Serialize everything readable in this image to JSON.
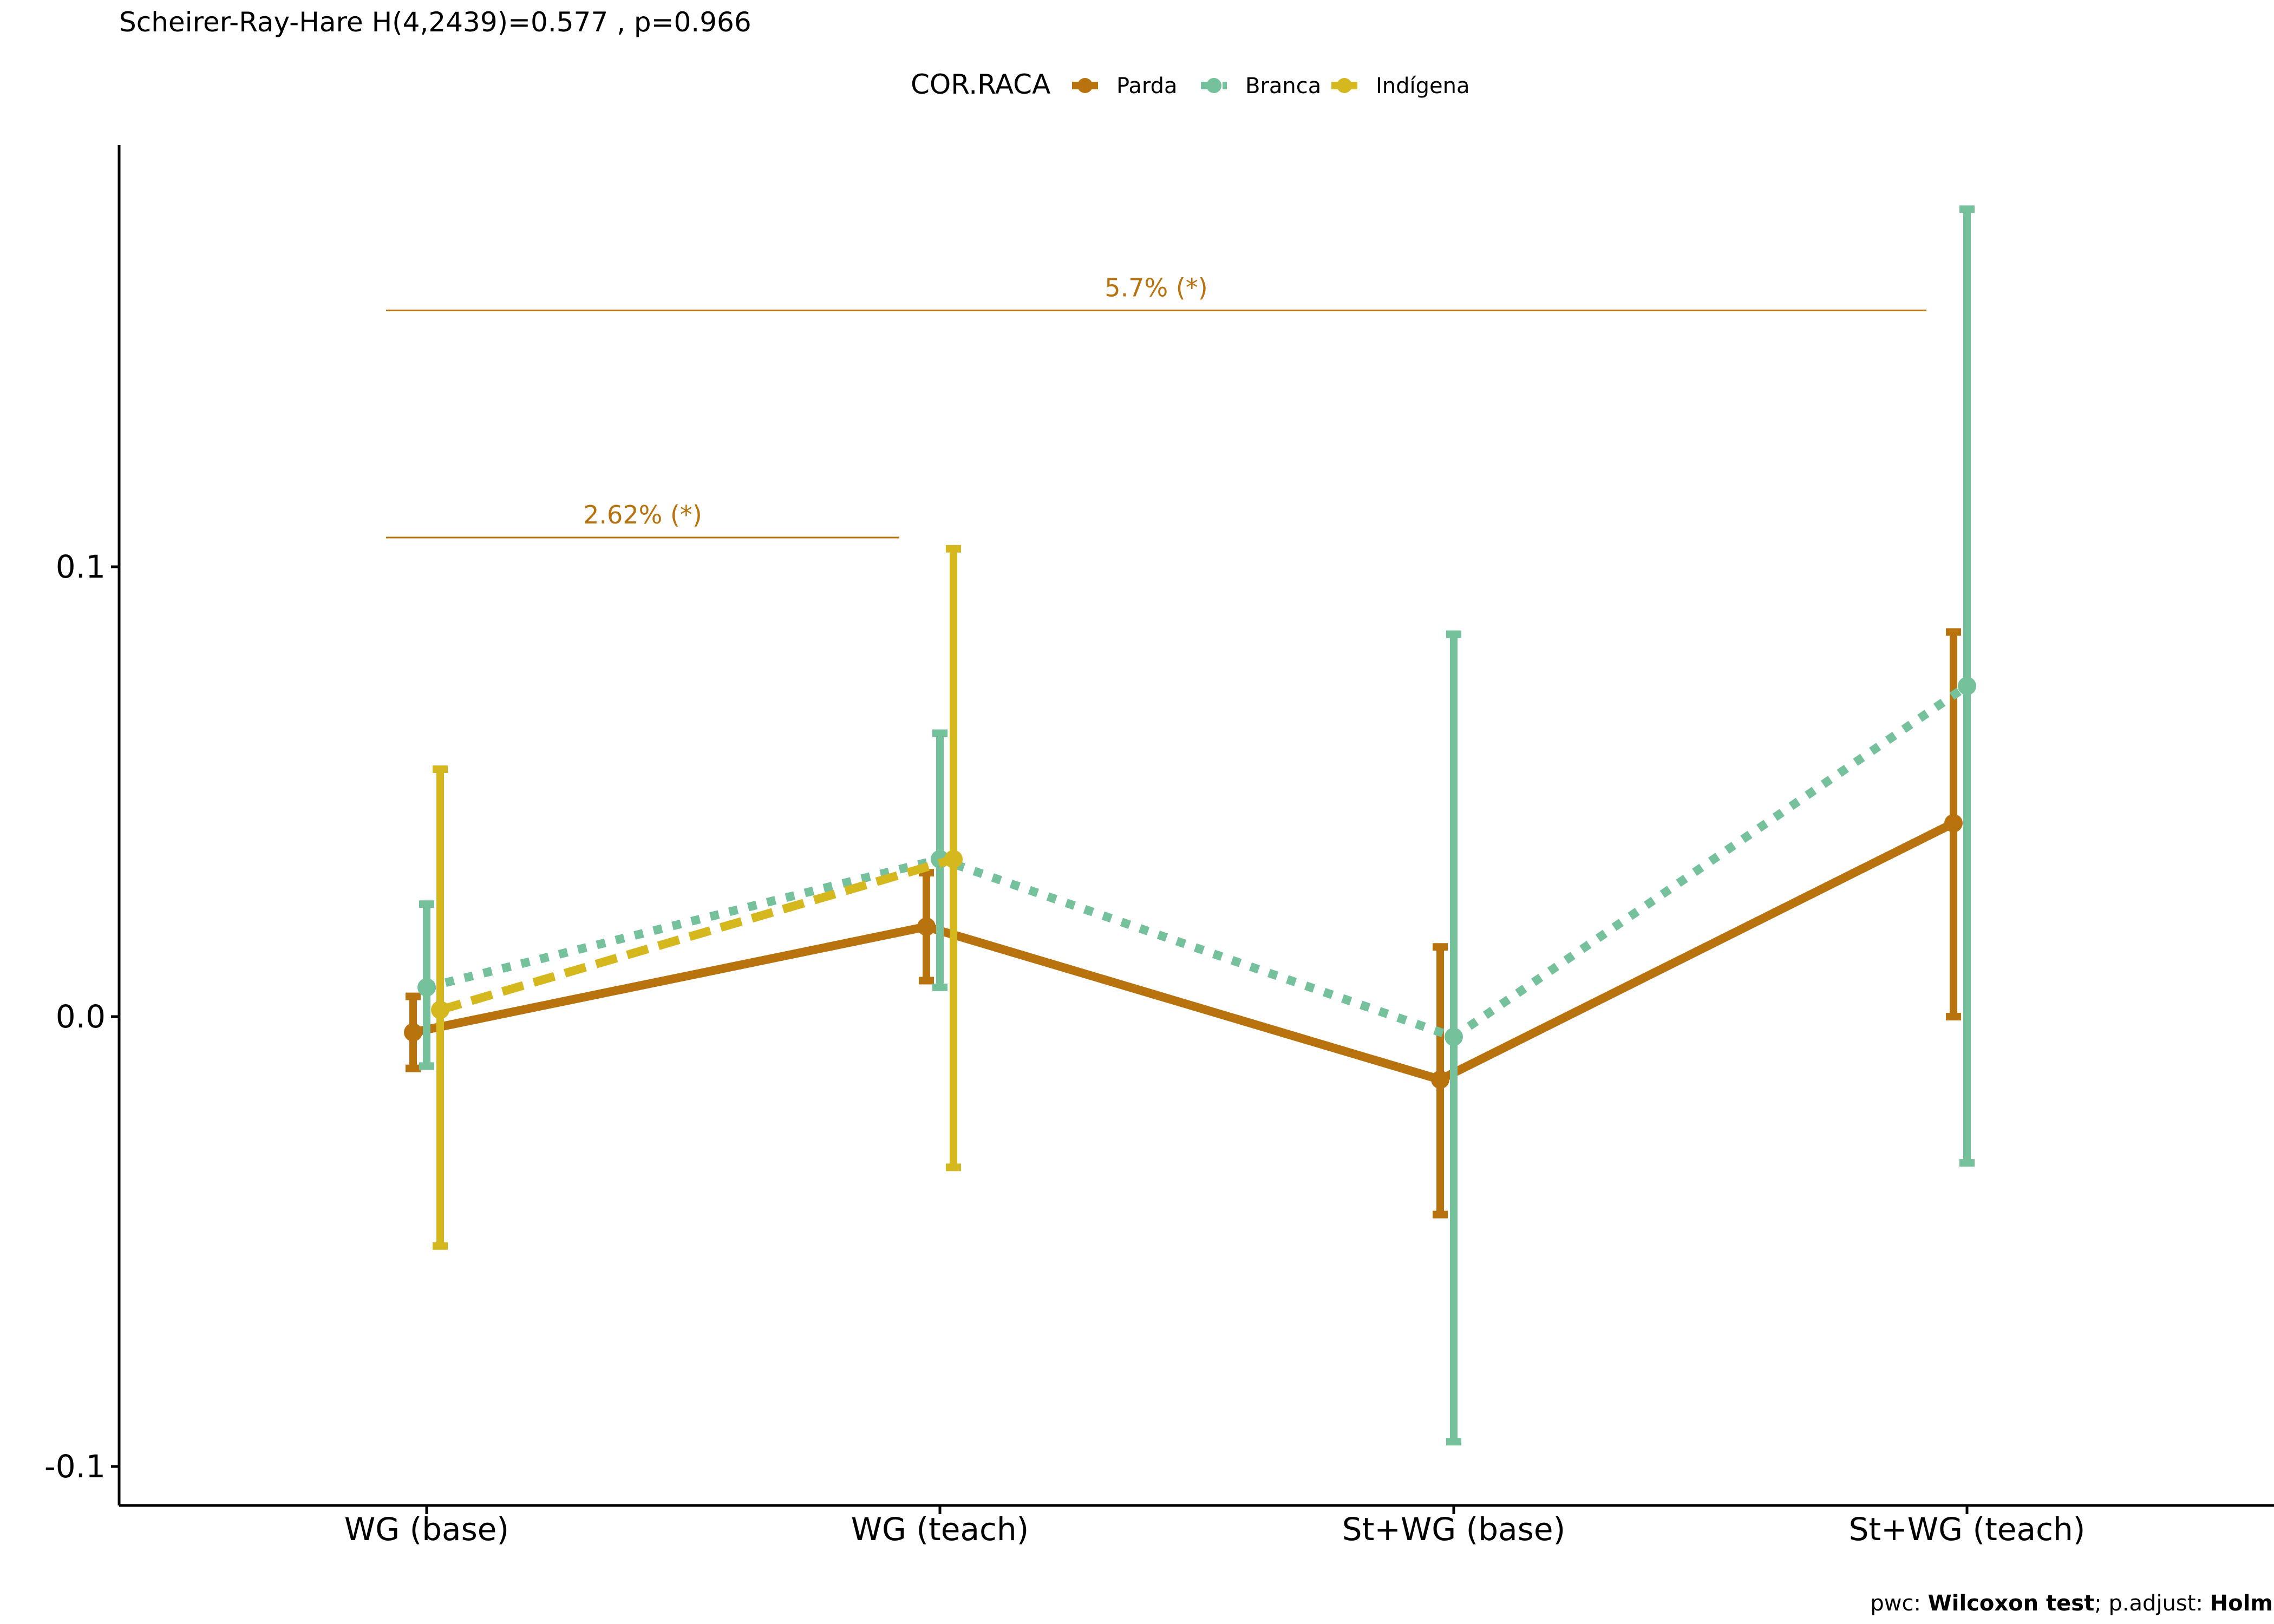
{
  "chart_data": {
    "type": "line",
    "subtitle": "Scheirer-Ray-Hare H(4,2439)=0.577 , p=0.966",
    "legend": {
      "title": "COR.RACA",
      "position": "top"
    },
    "categories": [
      "WG (base)",
      "WG (teach)",
      "St+WG (base)",
      "St+WG (teach)"
    ],
    "y_ticks": [
      {
        "value": 0.1,
        "label": "0.1"
      },
      {
        "value": 0.0,
        "label": "0.0"
      },
      {
        "value": -0.1,
        "label": "-0.1"
      }
    ],
    "ylim": [
      -0.108,
      0.193
    ],
    "grid": false,
    "series": [
      {
        "name": "Parda",
        "color": "#B8720E",
        "dash": "solid",
        "values": [
          -0.0035,
          0.02,
          -0.014,
          0.043
        ],
        "lower": [
          -0.0115,
          0.008,
          -0.044,
          0.0
        ],
        "upper": [
          0.0045,
          0.032,
          0.0155,
          0.0855
        ]
      },
      {
        "name": "Branca",
        "color": "#74C19B",
        "dash": "dotted",
        "values": [
          0.0065,
          0.035,
          -0.0045,
          0.0735
        ],
        "lower": [
          -0.011,
          0.0065,
          -0.0945,
          -0.0325
        ],
        "upper": [
          0.025,
          0.063,
          0.085,
          0.1795
        ]
      },
      {
        "name": "Indígena",
        "color": "#D4B81E",
        "dash": "dashed",
        "values": [
          0.0015,
          0.035,
          null,
          null
        ],
        "lower": [
          -0.051,
          -0.0335,
          null,
          null
        ],
        "upper": [
          0.055,
          0.104,
          null,
          null
        ]
      }
    ],
    "brackets": [
      {
        "label": "5.7% (*)",
        "from": "WG (base)",
        "to": "St+WG (teach)",
        "y": 0.157,
        "color": "#B8720E"
      },
      {
        "label": "2.62% (*)",
        "from": "WG (base)",
        "to": "WG (teach)",
        "y": 0.1065,
        "color": "#B8720E"
      }
    ]
  },
  "caption": {
    "prefix": "pwc: ",
    "test": "Wilcoxon test",
    "middle": "; p.adjust: ",
    "adjust": "Holm"
  }
}
